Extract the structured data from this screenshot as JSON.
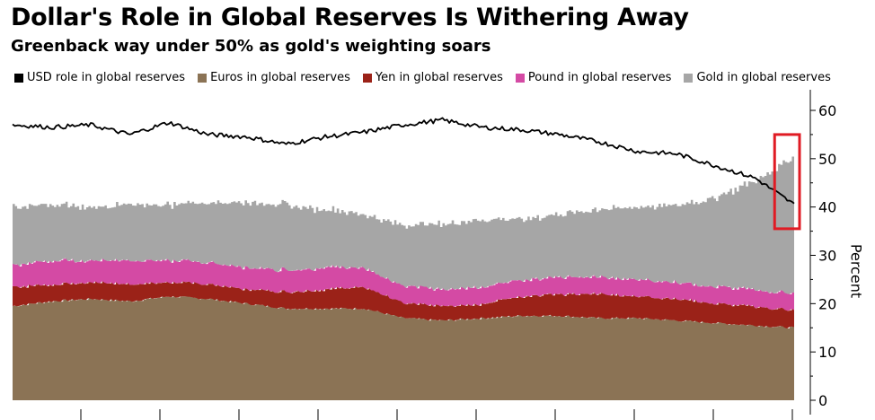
{
  "title": "Dollar's Role in Global Reserves Is Withering Away",
  "subtitle": "Greenback way under 50% as gold's weighting soars",
  "legend": [
    {
      "label": "USD role in global reserves",
      "color": "#000000"
    },
    {
      "label": "Euros in global reserves",
      "color": "#8b7355"
    },
    {
      "label": "Yen in global reserves",
      "color": "#9b2218"
    },
    {
      "label": "Pound in global reserves",
      "color": "#d44aa4"
    },
    {
      "label": "Gold in global reserves",
      "color": "#a6a6a6"
    }
  ],
  "chart_data": {
    "type": "area",
    "title": "Dollar's Role in Global Reserves Is Withering Away",
    "subtitle": "Greenback way under 50% as gold's weighting soars",
    "ylabel": "Percent",
    "ylim": [
      0,
      62
    ],
    "yticks": [
      0,
      10,
      20,
      30,
      40,
      50,
      60
    ],
    "y_axis_side": "right",
    "x_index": [
      0,
      5,
      10,
      15,
      20,
      25,
      30,
      35,
      40,
      45,
      50,
      55,
      60,
      65,
      70,
      75,
      80,
      85,
      90,
      95,
      100
    ],
    "series": [
      {
        "name": "Euros in global reserves",
        "stacked": true,
        "color": "#8b7355",
        "values": [
          19.5,
          20.5,
          21,
          20.5,
          21.5,
          21,
          20,
          19,
          19,
          19,
          17,
          16.5,
          17,
          17.5,
          17.5,
          17,
          17,
          16.5,
          16,
          15.5,
          15
        ]
      },
      {
        "name": "Yen in global reserves",
        "stacked": true,
        "color": "#9b2218",
        "values": [
          4,
          3.5,
          3.5,
          3.5,
          3,
          3,
          3,
          3.5,
          4,
          4.5,
          3,
          3,
          3,
          4,
          4.5,
          5,
          4.5,
          4.5,
          4,
          4,
          3.5
        ]
      },
      {
        "name": "Pound in global reserves",
        "stacked": true,
        "color": "#d44aa4",
        "values": [
          4.5,
          5,
          4.5,
          5,
          4.5,
          4.5,
          4.5,
          4.5,
          4.5,
          4,
          3.5,
          3.5,
          3.5,
          3.5,
          3.5,
          3.5,
          3.5,
          3.5,
          3.5,
          3.5,
          3.5
        ]
      },
      {
        "name": "Gold in global reserves",
        "stacked": true,
        "color": "#a6a6a6",
        "values": [
          12,
          11.5,
          11,
          11.5,
          11.5,
          12.5,
          13.5,
          13.5,
          12,
          11,
          12.5,
          13.5,
          14,
          12.5,
          13,
          14,
          15,
          16,
          18.5,
          22.5,
          28.5
        ]
      },
      {
        "name": "USD role in global reserves",
        "stacked": false,
        "color": "#000000",
        "values": [
          57,
          56.5,
          57,
          55,
          57.5,
          55,
          54.5,
          53,
          54.5,
          55.5,
          57,
          58,
          56.5,
          56,
          55,
          53.5,
          51.5,
          51,
          48.5,
          46,
          40.5
        ]
      }
    ],
    "annotations": [
      {
        "type": "box",
        "color": "#e01b24",
        "x_index": [
          97.5,
          100
        ],
        "y_range": [
          35.5,
          55
        ]
      }
    ],
    "grid": false
  }
}
